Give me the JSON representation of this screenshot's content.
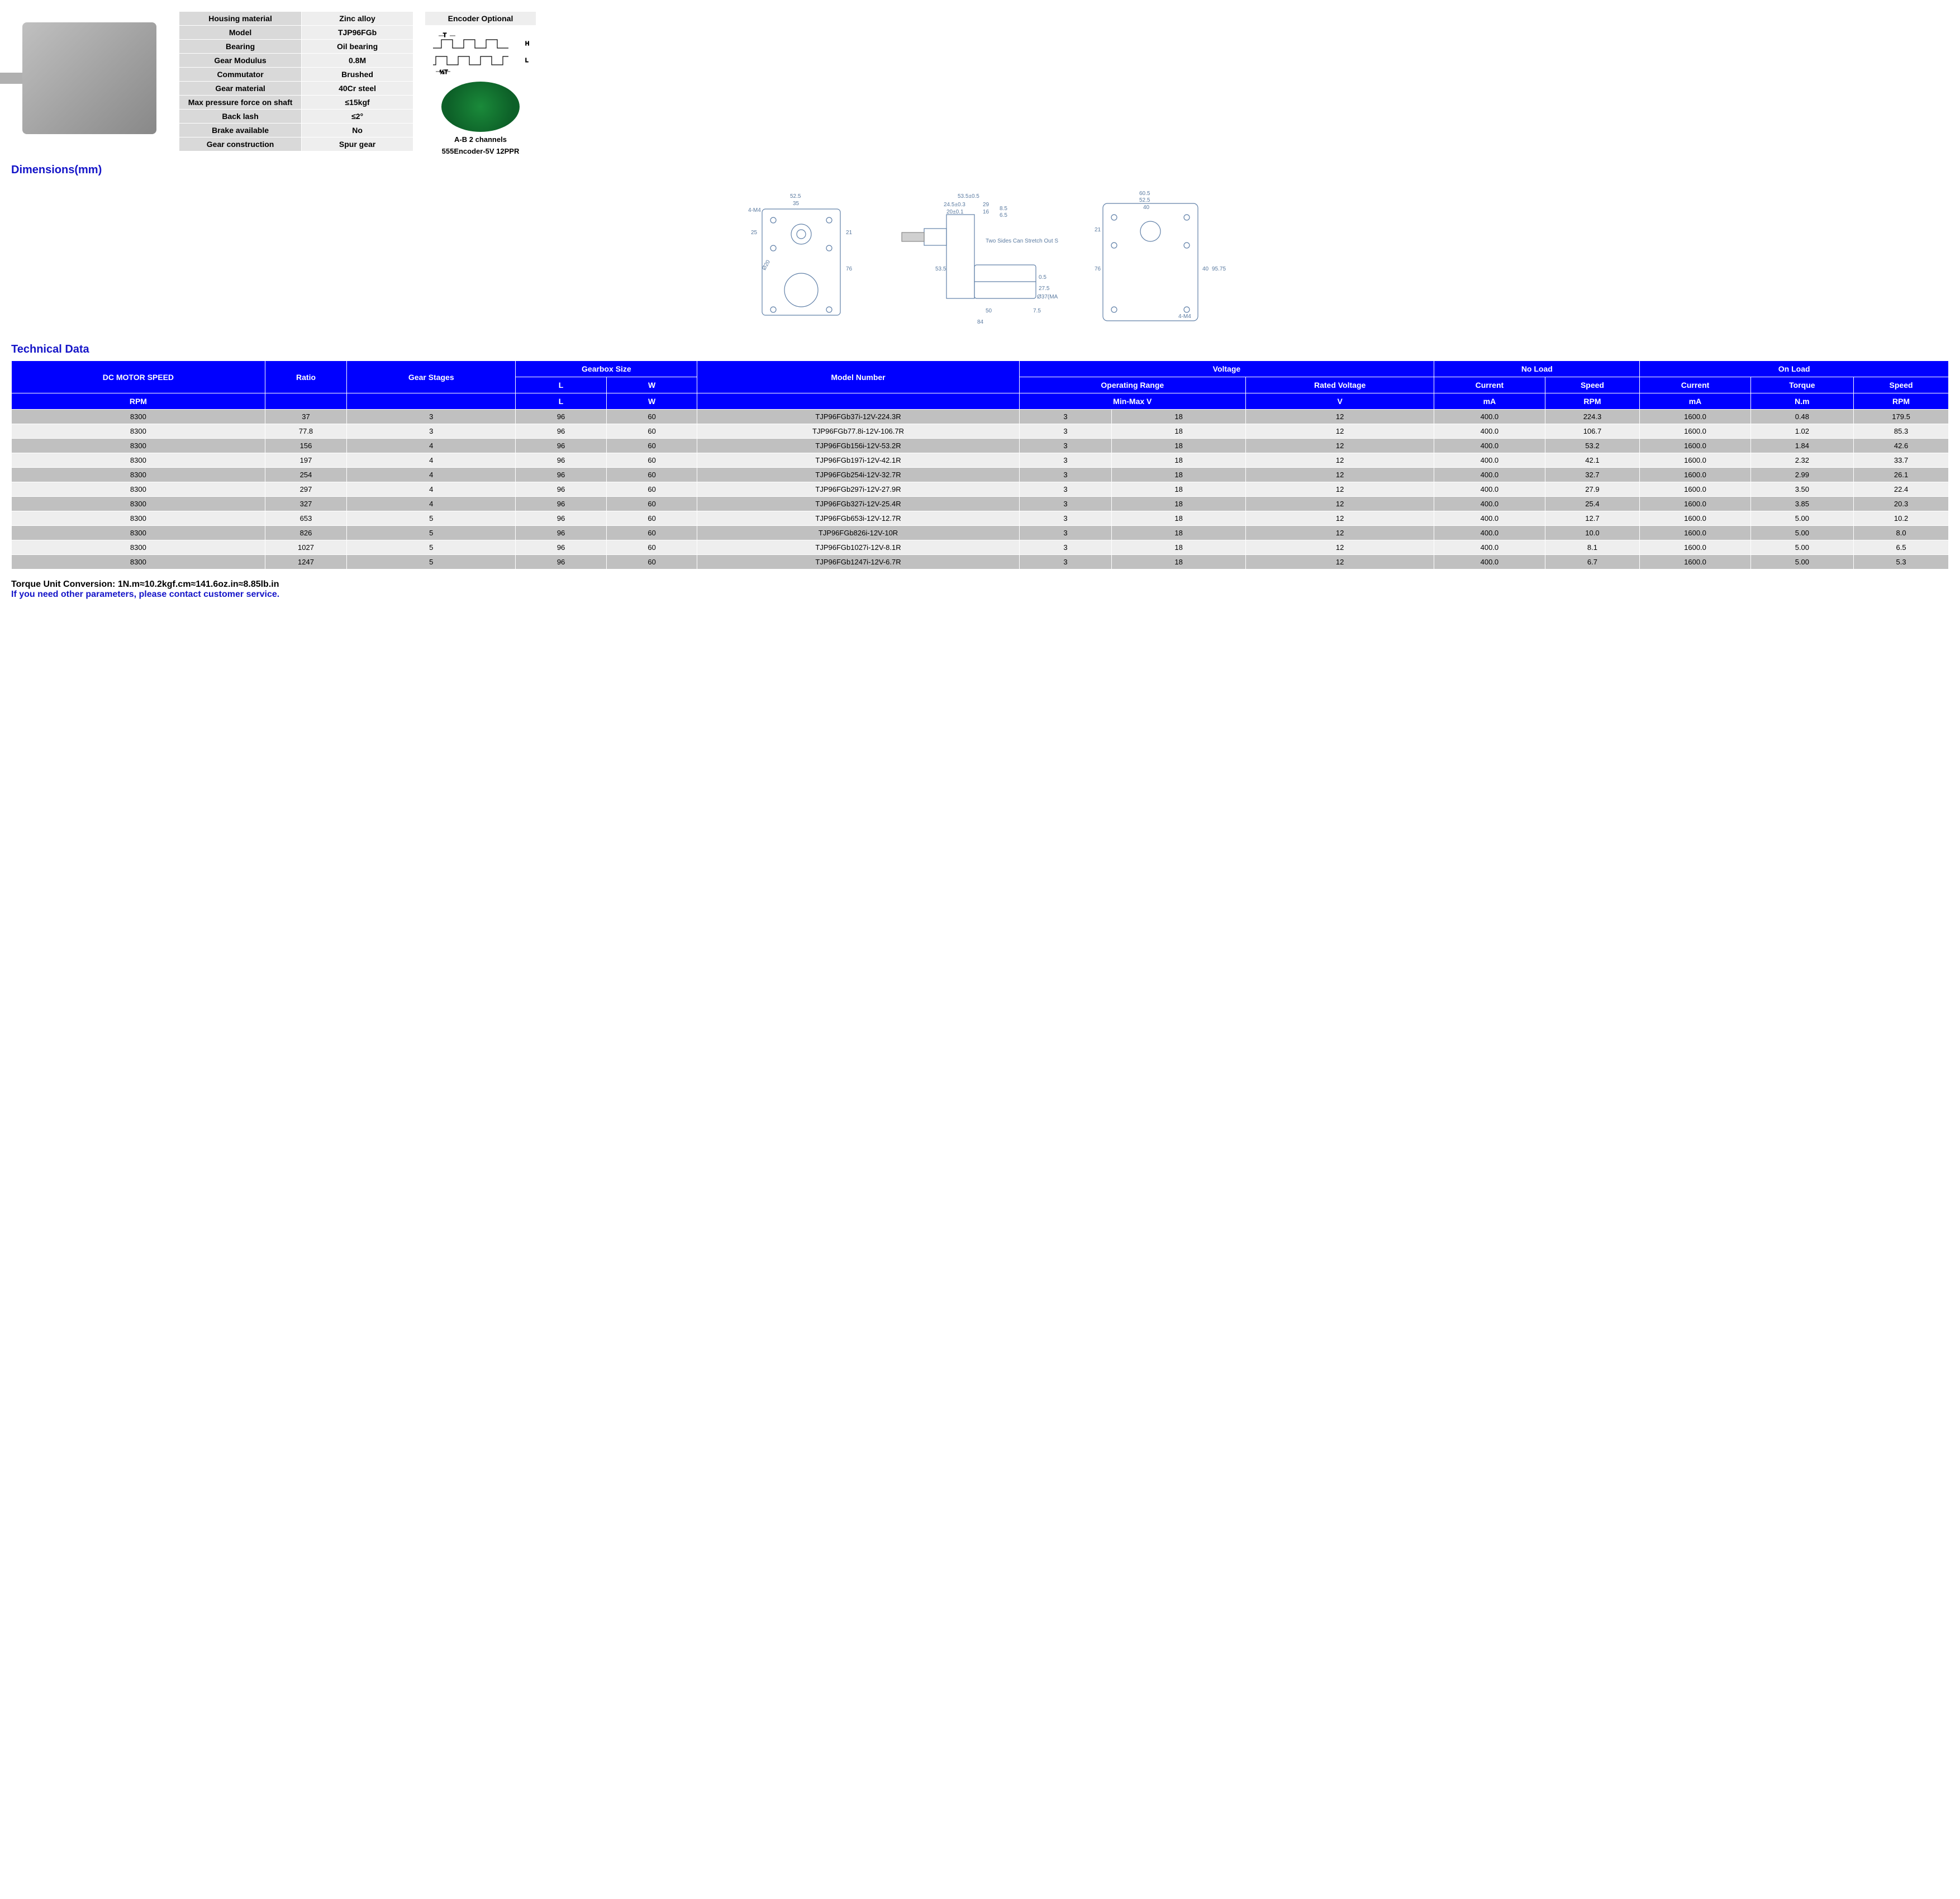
{
  "specs": {
    "rows": [
      {
        "label": "Housing material",
        "value": "Zinc alloy"
      },
      {
        "label": "Model",
        "value": "TJP96FGb"
      },
      {
        "label": "Bearing",
        "value": "Oil bearing"
      },
      {
        "label": "Gear Modulus",
        "value": "0.8M"
      },
      {
        "label": "Commutator",
        "value": "Brushed"
      },
      {
        "label": "Gear material",
        "value": "40Cr steel"
      },
      {
        "label": "Max pressure force on shaft",
        "value": "≤15kgf"
      },
      {
        "label": "Back lash",
        "value": "≤2°"
      },
      {
        "label": "Brake available",
        "value": "No"
      },
      {
        "label": "Gear construction",
        "value": "Spur gear"
      }
    ]
  },
  "encoder": {
    "header": "Encoder Optional",
    "caption1": "A-B 2 channels",
    "caption2": "555Encoder-5V 12PPR",
    "wave_labels": {
      "T": "T",
      "H": "H",
      "L": "L",
      "halfT": "½T"
    }
  },
  "sections": {
    "dimensions": "Dimensions(mm)",
    "technical": "Technical Data"
  },
  "dimensions_note": "Two Sides Can Stretch Out Shaft",
  "dimensions_values": [
    "52.5",
    "35",
    "4-M4",
    "25",
    "21",
    "76",
    "Ø20",
    "Ø8-0.01/-0.03",
    "7-0.06/-0.01",
    "53.5±0.5",
    "24.5±0.3",
    "20±0.1",
    "29",
    "16",
    "8.5",
    "6.5",
    "Ø20-0.01/-0.05",
    "53.5",
    "0.5",
    "27.5",
    "Ø37(MAX)",
    "50",
    "7.5",
    "84",
    "60.5",
    "52.5",
    "40",
    "21",
    "76",
    "40",
    "95.75",
    "4-M4"
  ],
  "tech_header": {
    "dcMotor": "DC MOTOR SPEED",
    "ratio": "Ratio",
    "stages": "Gear Stages",
    "gearbox": "Gearbox Size",
    "model": "Model Number",
    "voltage": "Voltage",
    "noload": "No Load",
    "onload": "On Load",
    "L": "L",
    "W": "W",
    "opRange": "Operating Range",
    "rated": "Rated Voltage",
    "current": "Current",
    "speed": "Speed",
    "torque": "Torque",
    "rpm": "RPM",
    "minmax": "Min-Max V",
    "v": "V",
    "ma": "mA",
    "nm": "N.m"
  },
  "tech_rows": [
    {
      "rpm": "8300",
      "ratio": "37",
      "stages": "3",
      "L": "96",
      "W": "60",
      "model": "TJP96FGb37i-12V-224.3R",
      "vmin": "3",
      "vmax": "18",
      "vr": "12",
      "nlI": "400.0",
      "nlS": "224.3",
      "olI": "1600.0",
      "olT": "0.48",
      "olS": "179.5"
    },
    {
      "rpm": "8300",
      "ratio": "77.8",
      "stages": "3",
      "L": "96",
      "W": "60",
      "model": "TJP96FGb77.8i-12V-106.7R",
      "vmin": "3",
      "vmax": "18",
      "vr": "12",
      "nlI": "400.0",
      "nlS": "106.7",
      "olI": "1600.0",
      "olT": "1.02",
      "olS": "85.3"
    },
    {
      "rpm": "8300",
      "ratio": "156",
      "stages": "4",
      "L": "96",
      "W": "60",
      "model": "TJP96FGb156i-12V-53.2R",
      "vmin": "3",
      "vmax": "18",
      "vr": "12",
      "nlI": "400.0",
      "nlS": "53.2",
      "olI": "1600.0",
      "olT": "1.84",
      "olS": "42.6"
    },
    {
      "rpm": "8300",
      "ratio": "197",
      "stages": "4",
      "L": "96",
      "W": "60",
      "model": "TJP96FGb197i-12V-42.1R",
      "vmin": "3",
      "vmax": "18",
      "vr": "12",
      "nlI": "400.0",
      "nlS": "42.1",
      "olI": "1600.0",
      "olT": "2.32",
      "olS": "33.7"
    },
    {
      "rpm": "8300",
      "ratio": "254",
      "stages": "4",
      "L": "96",
      "W": "60",
      "model": "TJP96FGb254i-12V-32.7R",
      "vmin": "3",
      "vmax": "18",
      "vr": "12",
      "nlI": "400.0",
      "nlS": "32.7",
      "olI": "1600.0",
      "olT": "2.99",
      "olS": "26.1"
    },
    {
      "rpm": "8300",
      "ratio": "297",
      "stages": "4",
      "L": "96",
      "W": "60",
      "model": "TJP96FGb297i-12V-27.9R",
      "vmin": "3",
      "vmax": "18",
      "vr": "12",
      "nlI": "400.0",
      "nlS": "27.9",
      "olI": "1600.0",
      "olT": "3.50",
      "olS": "22.4"
    },
    {
      "rpm": "8300",
      "ratio": "327",
      "stages": "4",
      "L": "96",
      "W": "60",
      "model": "TJP96FGb327i-12V-25.4R",
      "vmin": "3",
      "vmax": "18",
      "vr": "12",
      "nlI": "400.0",
      "nlS": "25.4",
      "olI": "1600.0",
      "olT": "3.85",
      "olS": "20.3"
    },
    {
      "rpm": "8300",
      "ratio": "653",
      "stages": "5",
      "L": "96",
      "W": "60",
      "model": "TJP96FGb653i-12V-12.7R",
      "vmin": "3",
      "vmax": "18",
      "vr": "12",
      "nlI": "400.0",
      "nlS": "12.7",
      "olI": "1600.0",
      "olT": "5.00",
      "olS": "10.2"
    },
    {
      "rpm": "8300",
      "ratio": "826",
      "stages": "5",
      "L": "96",
      "W": "60",
      "model": "TJP96FGb826i-12V-10R",
      "vmin": "3",
      "vmax": "18",
      "vr": "12",
      "nlI": "400.0",
      "nlS": "10.0",
      "olI": "1600.0",
      "olT": "5.00",
      "olS": "8.0"
    },
    {
      "rpm": "8300",
      "ratio": "1027",
      "stages": "5",
      "L": "96",
      "W": "60",
      "model": "TJP96FGb1027i-12V-8.1R",
      "vmin": "3",
      "vmax": "18",
      "vr": "12",
      "nlI": "400.0",
      "nlS": "8.1",
      "olI": "1600.0",
      "olT": "5.00",
      "olS": "6.5"
    },
    {
      "rpm": "8300",
      "ratio": "1247",
      "stages": "5",
      "L": "96",
      "W": "60",
      "model": "TJP96FGb1247i-12V-6.7R",
      "vmin": "3",
      "vmax": "18",
      "vr": "12",
      "nlI": "400.0",
      "nlS": "6.7",
      "olI": "1600.0",
      "olT": "5.00",
      "olS": "5.3"
    }
  ],
  "footer": {
    "conversion": "Torque Unit Conversion: 1N.m≈10.2kgf.cm≈141.6oz.in≈8.85lb.in",
    "contact": "If you need other parameters, please contact customer service."
  },
  "colors": {
    "headerBlue": "#0000ff",
    "sectionBlue": "#1414c8",
    "rowDark": "#c0c0c0",
    "rowLight": "#eeeeee",
    "specLabel": "#d9d9d9",
    "specValue": "#eeeeee",
    "drawingLine": "#6080a8"
  }
}
